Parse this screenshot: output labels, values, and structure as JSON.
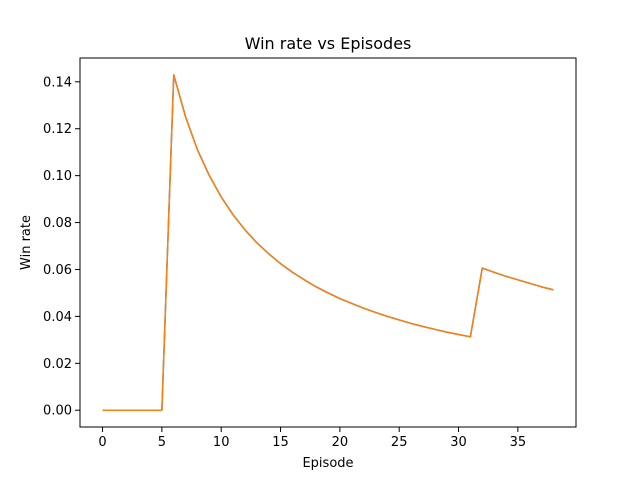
{
  "chart_data": {
    "type": "line",
    "title": "Win rate vs Episodes",
    "xlabel": "Episode",
    "ylabel": "Win rate",
    "xlim": [
      -1.9,
      39.9
    ],
    "ylim": [
      -0.00715,
      0.15015
    ],
    "x_ticks": [
      0,
      5,
      10,
      15,
      20,
      25,
      30,
      35
    ],
    "x_tick_labels": [
      "0",
      "5",
      "10",
      "15",
      "20",
      "25",
      "30",
      "35"
    ],
    "y_ticks": [
      0.0,
      0.02,
      0.04,
      0.06,
      0.08,
      0.1,
      0.12,
      0.14
    ],
    "y_tick_labels": [
      "0.00",
      "0.02",
      "0.04",
      "0.06",
      "0.08",
      "0.10",
      "0.12",
      "0.14"
    ],
    "grid": false,
    "series": [
      {
        "color": "#1f77b4",
        "x": [
          0,
          1,
          2,
          3,
          4,
          5,
          6,
          7,
          8,
          9,
          10,
          11,
          12,
          13,
          14,
          15,
          16,
          17,
          18,
          19,
          20,
          21,
          22,
          23,
          24,
          25,
          26,
          27,
          28,
          29,
          30,
          31,
          32,
          33,
          34,
          35,
          36,
          37,
          38
        ],
        "y": [
          0,
          0,
          0,
          0,
          0,
          0,
          0.143,
          0.125,
          0.111,
          0.1,
          0.0909,
          0.0833,
          0.0769,
          0.0714,
          0.0667,
          0.0625,
          0.0588,
          0.0556,
          0.0526,
          0.05,
          0.0476,
          0.0455,
          0.0435,
          0.0417,
          0.04,
          0.0385,
          0.037,
          0.0357,
          0.0345,
          0.0333,
          0.0323,
          0.0313,
          0.0606,
          0.0588,
          0.0571,
          0.0556,
          0.0541,
          0.0526,
          0.0513
        ]
      },
      {
        "color": "#ff7f0e",
        "x": [
          0,
          1,
          2,
          3,
          4,
          5,
          6,
          7,
          8,
          9,
          10,
          11,
          12,
          13,
          14,
          15,
          16,
          17,
          18,
          19,
          20,
          21,
          22,
          23,
          24,
          25,
          26,
          27,
          28,
          29,
          30,
          31,
          32,
          33,
          34,
          35,
          36,
          37,
          38
        ],
        "y": [
          0,
          0,
          0,
          0,
          0,
          0,
          0.143,
          0.125,
          0.111,
          0.1,
          0.0909,
          0.0833,
          0.0769,
          0.0714,
          0.0667,
          0.0625,
          0.0588,
          0.0556,
          0.0526,
          0.05,
          0.0476,
          0.0455,
          0.0435,
          0.0417,
          0.04,
          0.0385,
          0.037,
          0.0357,
          0.0345,
          0.0333,
          0.0323,
          0.0313,
          0.0606,
          0.0588,
          0.0571,
          0.0556,
          0.0541,
          0.0526,
          0.0513
        ]
      }
    ]
  }
}
